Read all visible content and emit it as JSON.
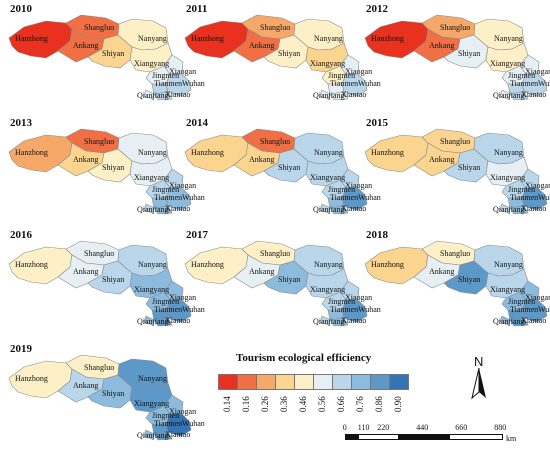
{
  "colors": {
    "classes": [
      "#e8311f",
      "#f06f45",
      "#f6a869",
      "#fbd58f",
      "#fdf0c6",
      "#e6f0f4",
      "#b9d6ea",
      "#8cbbdd",
      "#5c99c9",
      "#3274b4"
    ],
    "outline": "#8a8a8a"
  },
  "legend": {
    "title": "Tourism ecological efficiency",
    "ticks": [
      "0.14",
      "0.16",
      "0.26",
      "0.36",
      "0.46",
      "0.56",
      "0.66",
      "0.76",
      "0.86",
      "0.90"
    ]
  },
  "regions": [
    "Hanzhong",
    "Shangluo",
    "Ankang",
    "Shiyan",
    "Nanyang",
    "Xiangyang",
    "Jingmen",
    "Xiaogan",
    "Tianmen",
    "Wuhan",
    "Qianjiang",
    "Xiantao"
  ],
  "panels": [
    {
      "year": "2010",
      "classes": [
        0,
        1,
        1,
        3,
        4,
        4,
        5,
        5,
        6,
        6,
        5,
        6
      ]
    },
    {
      "year": "2011",
      "classes": [
        0,
        2,
        1,
        4,
        4,
        3,
        4,
        5,
        5,
        6,
        5,
        5
      ]
    },
    {
      "year": "2012",
      "classes": [
        0,
        2,
        1,
        5,
        4,
        4,
        5,
        5,
        6,
        6,
        5,
        6
      ]
    },
    {
      "year": "2013",
      "classes": [
        2,
        1,
        3,
        4,
        5,
        5,
        6,
        6,
        7,
        7,
        6,
        7
      ]
    },
    {
      "year": "2014",
      "classes": [
        3,
        1,
        3,
        6,
        6,
        6,
        6,
        6,
        7,
        8,
        6,
        7
      ]
    },
    {
      "year": "2015",
      "classes": [
        3,
        3,
        3,
        6,
        6,
        5,
        6,
        6,
        7,
        8,
        6,
        7
      ]
    },
    {
      "year": "2016",
      "classes": [
        4,
        5,
        5,
        6,
        6,
        7,
        7,
        7,
        8,
        8,
        7,
        8
      ]
    },
    {
      "year": "2017",
      "classes": [
        4,
        4,
        5,
        7,
        6,
        6,
        6,
        6,
        7,
        8,
        6,
        7
      ]
    },
    {
      "year": "2018",
      "classes": [
        3,
        4,
        5,
        8,
        6,
        6,
        7,
        7,
        8,
        8,
        7,
        8
      ]
    },
    {
      "year": "2019",
      "classes": [
        4,
        4,
        6,
        7,
        8,
        8,
        7,
        7,
        8,
        9,
        7,
        8
      ]
    }
  ],
  "north_label": "N",
  "scale": {
    "ticks": [
      "0",
      "110",
      "220",
      "440",
      "660",
      "880"
    ],
    "unit": "km"
  }
}
